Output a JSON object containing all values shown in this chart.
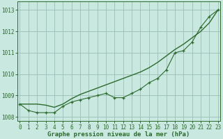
{
  "x": [
    0,
    1,
    2,
    3,
    4,
    5,
    6,
    7,
    8,
    9,
    10,
    11,
    12,
    13,
    14,
    15,
    16,
    17,
    18,
    19,
    20,
    21,
    22,
    23
  ],
  "line_markers": [
    1008.6,
    1008.3,
    1008.2,
    1008.2,
    1008.2,
    1008.5,
    1008.7,
    1008.8,
    1008.9,
    1009.0,
    1009.1,
    1008.9,
    1008.9,
    1009.1,
    1009.3,
    1009.6,
    1009.8,
    1010.2,
    1011.0,
    1011.1,
    1011.5,
    1012.2,
    1012.7,
    1013.0
  ],
  "line_smooth": [
    1008.6,
    1008.6,
    1008.6,
    1008.55,
    1008.45,
    1008.6,
    1008.85,
    1009.05,
    1009.2,
    1009.35,
    1009.5,
    1009.65,
    1009.8,
    1009.95,
    1010.1,
    1010.3,
    1010.55,
    1010.85,
    1011.15,
    1011.4,
    1011.7,
    1012.0,
    1012.4,
    1013.0
  ],
  "line_color": "#2d6a2d",
  "bg_color": "#c8e8e0",
  "grid_color": "#a0c4bc",
  "xlabel": "Graphe pression niveau de la mer (hPa)",
  "ylim": [
    1007.8,
    1013.4
  ],
  "xlim": [
    -0.3,
    23.3
  ],
  "yticks": [
    1008,
    1009,
    1010,
    1011,
    1012,
    1013
  ],
  "xticks": [
    0,
    1,
    2,
    3,
    4,
    5,
    6,
    7,
    8,
    9,
    10,
    11,
    12,
    13,
    14,
    15,
    16,
    17,
    18,
    19,
    20,
    21,
    22,
    23
  ],
  "tick_fontsize": 5.5,
  "label_fontsize": 6.5
}
